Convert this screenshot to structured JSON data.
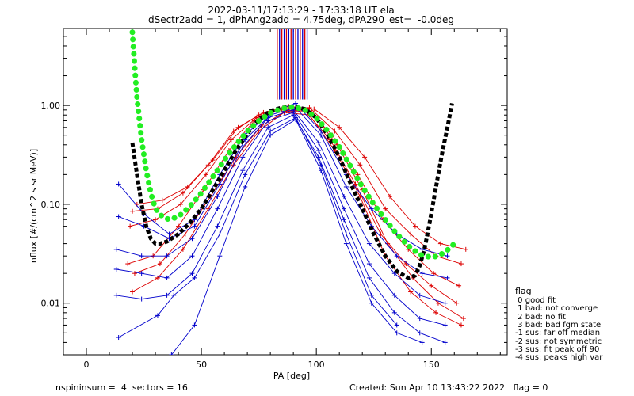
{
  "header": {
    "title_line1": "2022-03-11/17:13:29 - 17:33:18 UT ela",
    "title_line2": "dSectr2add = 1, dPhAng2add = 4.75deg, dPA290_est=  -0.0deg"
  },
  "footer": {
    "left": "nspininsum =  4  sectors = 16",
    "right": "Created: Sun Apr 10 13:43:22 2022   flag = 0"
  },
  "legend": {
    "title": "flag",
    "items": [
      " 0 good fit",
      " 1 bad: not converge",
      " 2 bad: no fit",
      " 3 bad: bad fgm state",
      "-1 sus: far off median",
      "-2 sus: not symmetric",
      "-3 sus: fit peak off 90",
      "-4 sus: peaks high var"
    ]
  },
  "colors": {
    "red": "#dd0000",
    "blue": "#0000cc",
    "green": "#22ee22",
    "black": "#000000"
  },
  "chart_data": {
    "type": "line",
    "yscale": "log",
    "xlabel": "PA [deg]",
    "ylabel": "nflux [#/(cm^2 s sr MeV)]",
    "xlim": [
      -10,
      183
    ],
    "ylim": [
      0.003,
      6
    ],
    "xticks": [
      0,
      50,
      100,
      150
    ],
    "yticks": [
      0.01,
      0.1,
      1.0
    ],
    "ytick_labels": [
      "0.01",
      "0.10",
      "1.00"
    ],
    "vertical_lines": [
      {
        "x": 83,
        "color": "red"
      },
      {
        "x": 84,
        "color": "blue"
      },
      {
        "x": 85,
        "color": "red"
      },
      {
        "x": 86,
        "color": "blue"
      },
      {
        "x": 87,
        "color": "red"
      },
      {
        "x": 88,
        "color": "blue"
      },
      {
        "x": 89,
        "color": "red"
      },
      {
        "x": 90,
        "color": "blue"
      },
      {
        "x": 91,
        "color": "red"
      },
      {
        "x": 92,
        "color": "blue"
      },
      {
        "x": 93,
        "color": "red"
      },
      {
        "x": 94,
        "color": "blue"
      },
      {
        "x": 95,
        "color": "red"
      },
      {
        "x": 96,
        "color": "blue"
      }
    ],
    "series": [
      {
        "color": "red",
        "x": [
          20,
          31,
          42,
          53,
          64,
          75,
          86,
          97,
          108,
          119,
          130,
          141,
          152,
          163
        ],
        "y": [
          0.085,
          0.09,
          0.13,
          0.25,
          0.55,
          0.8,
          0.95,
          0.95,
          0.55,
          0.25,
          0.09,
          0.05,
          0.03,
          0.025
        ]
      },
      {
        "color": "red",
        "x": [
          19,
          30,
          41,
          52,
          63,
          74,
          85,
          96,
          107,
          118,
          129,
          140,
          151,
          162
        ],
        "y": [
          0.06,
          0.07,
          0.1,
          0.2,
          0.45,
          0.75,
          0.92,
          0.9,
          0.5,
          0.2,
          0.07,
          0.035,
          0.02,
          0.015
        ]
      },
      {
        "color": "red",
        "x": [
          18,
          29,
          40,
          51,
          62,
          73,
          84,
          95,
          106,
          117,
          128,
          139,
          150,
          161
        ],
        "y": [
          0.025,
          0.03,
          0.06,
          0.14,
          0.35,
          0.7,
          0.9,
          0.88,
          0.45,
          0.16,
          0.05,
          0.025,
          0.015,
          0.01
        ]
      },
      {
        "color": "red",
        "x": [
          21,
          32,
          43,
          54,
          65,
          76,
          87,
          98,
          109,
          120,
          131,
          142,
          153,
          164
        ],
        "y": [
          0.02,
          0.025,
          0.05,
          0.12,
          0.3,
          0.62,
          0.88,
          0.85,
          0.4,
          0.14,
          0.04,
          0.018,
          0.01,
          0.007
        ]
      },
      {
        "color": "red",
        "x": [
          20,
          31,
          42,
          53,
          64,
          75,
          86,
          97,
          108,
          119,
          130,
          141,
          152,
          163
        ],
        "y": [
          0.013,
          0.018,
          0.035,
          0.09,
          0.25,
          0.55,
          0.85,
          0.8,
          0.35,
          0.12,
          0.03,
          0.013,
          0.008,
          0.006
        ]
      },
      {
        "color": "red",
        "x": [
          22,
          33,
          44,
          55,
          66,
          77,
          88,
          99,
          110,
          121,
          132,
          143,
          154,
          165
        ],
        "y": [
          0.1,
          0.11,
          0.15,
          0.28,
          0.6,
          0.85,
          0.98,
          0.92,
          0.6,
          0.3,
          0.12,
          0.06,
          0.04,
          0.035
        ]
      },
      {
        "color": "blue",
        "x": [
          14,
          25,
          36,
          47,
          58,
          69,
          80,
          91,
          102,
          113,
          124,
          135,
          146,
          157
        ],
        "y": [
          0.16,
          0.08,
          0.05,
          0.07,
          0.2,
          0.5,
          0.85,
          1.05,
          0.55,
          0.2,
          0.09,
          0.05,
          0.035,
          0.03
        ]
      },
      {
        "color": "blue",
        "x": [
          14,
          25,
          36,
          47,
          58,
          69,
          80,
          91,
          102,
          113,
          124,
          135,
          146,
          157
        ],
        "y": [
          0.075,
          0.06,
          0.045,
          0.06,
          0.16,
          0.45,
          0.8,
          0.95,
          0.5,
          0.15,
          0.06,
          0.03,
          0.02,
          0.018
        ]
      },
      {
        "color": "blue",
        "x": [
          13,
          24,
          35,
          46,
          57,
          68,
          79,
          90,
          101,
          112,
          123,
          134,
          145,
          156
        ],
        "y": [
          0.035,
          0.03,
          0.03,
          0.045,
          0.12,
          0.38,
          0.75,
          0.9,
          0.42,
          0.12,
          0.04,
          0.02,
          0.012,
          0.01
        ]
      },
      {
        "color": "blue",
        "x": [
          13,
          24,
          35,
          46,
          57,
          68,
          79,
          90,
          101,
          112,
          123,
          134,
          145,
          156
        ],
        "y": [
          0.022,
          0.02,
          0.018,
          0.03,
          0.09,
          0.3,
          0.7,
          0.85,
          0.35,
          0.09,
          0.025,
          0.012,
          0.007,
          0.006
        ]
      },
      {
        "color": "blue",
        "x": [
          13,
          24,
          35,
          46,
          57,
          68,
          79,
          90,
          101,
          112,
          123,
          134,
          145,
          156
        ],
        "y": [
          0.012,
          0.011,
          0.012,
          0.02,
          0.06,
          0.22,
          0.6,
          0.8,
          0.3,
          0.07,
          0.018,
          0.008,
          0.005,
          0.004
        ]
      },
      {
        "color": "blue",
        "x": [
          14,
          31,
          38,
          47,
          58,
          69,
          80,
          91,
          102,
          113,
          124,
          135
        ],
        "y": [
          0.0045,
          0.0075,
          0.012,
          0.018,
          0.05,
          0.2,
          0.55,
          0.75,
          0.25,
          0.05,
          0.012,
          0.006
        ]
      },
      {
        "color": "blue",
        "x": [
          37,
          47,
          58,
          69,
          80,
          91,
          102,
          113,
          124,
          135,
          146
        ],
        "y": [
          0.003,
          0.006,
          0.03,
          0.15,
          0.5,
          0.72,
          0.22,
          0.04,
          0.01,
          0.005,
          0.004
        ]
      }
    ],
    "fits": [
      {
        "color": "black",
        "style": "dotted-thick",
        "x": [
          20,
          22,
          24,
          26,
          28,
          30,
          32,
          35,
          40,
          45,
          50,
          55,
          60,
          65,
          70,
          75,
          80,
          85,
          90,
          95,
          100,
          105,
          110,
          115,
          120,
          125,
          130,
          135,
          140,
          143,
          145,
          147,
          149,
          151,
          153,
          155,
          157,
          159
        ],
        "y": [
          0.42,
          0.2,
          0.1,
          0.06,
          0.045,
          0.04,
          0.04,
          0.042,
          0.05,
          0.065,
          0.09,
          0.14,
          0.22,
          0.35,
          0.52,
          0.72,
          0.88,
          0.95,
          0.97,
          0.92,
          0.75,
          0.5,
          0.3,
          0.16,
          0.09,
          0.05,
          0.03,
          0.021,
          0.018,
          0.019,
          0.024,
          0.035,
          0.06,
          0.11,
          0.2,
          0.36,
          0.6,
          1.05
        ]
      },
      {
        "color": "green",
        "style": "dotted-thick",
        "x": [
          20,
          21,
          22,
          24,
          26,
          28,
          30,
          33,
          36,
          40,
          45,
          50,
          55,
          60,
          65,
          70,
          75,
          80,
          85,
          90,
          95,
          100,
          105,
          110,
          115,
          120,
          125,
          130,
          135,
          140,
          145,
          150,
          153,
          156,
          158,
          160
        ],
        "y": [
          5.5,
          2.5,
          1.2,
          0.45,
          0.22,
          0.13,
          0.09,
          0.075,
          0.07,
          0.075,
          0.095,
          0.13,
          0.19,
          0.28,
          0.4,
          0.55,
          0.7,
          0.84,
          0.93,
          0.97,
          0.9,
          0.75,
          0.55,
          0.38,
          0.24,
          0.15,
          0.1,
          0.07,
          0.05,
          0.038,
          0.031,
          0.029,
          0.03,
          0.033,
          0.036,
          0.04
        ]
      }
    ]
  }
}
